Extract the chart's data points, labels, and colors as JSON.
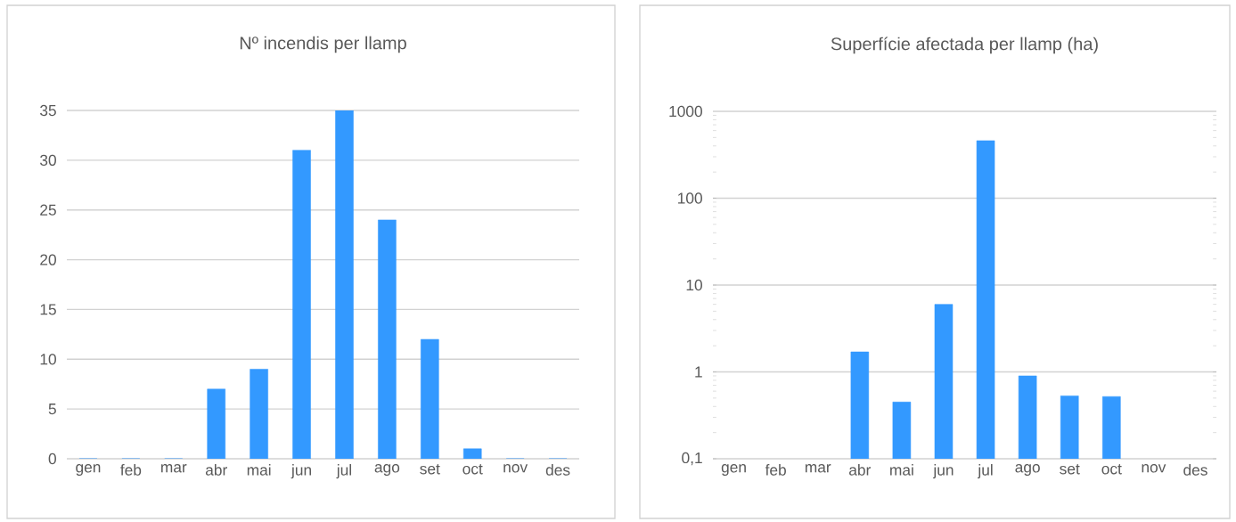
{
  "chart_data": [
    {
      "type": "bar",
      "title": "Nº incendis per llamp",
      "categories": [
        "gen",
        "feb",
        "mar",
        "abr",
        "mai",
        "jun",
        "jul",
        "ago",
        "set",
        "oct",
        "nov",
        "des"
      ],
      "values": [
        0,
        0,
        0,
        7,
        9,
        31,
        35,
        24,
        12,
        1,
        0,
        0
      ],
      "color": "#3399ff",
      "ylim": [
        0,
        35
      ],
      "yticks": [
        0,
        5,
        10,
        15,
        20,
        25,
        30,
        35
      ],
      "grid": "y"
    },
    {
      "type": "bar",
      "title": "Superfície afectada per llamp (ha)",
      "categories": [
        "gen",
        "feb",
        "mar",
        "abr",
        "mai",
        "jun",
        "jul",
        "ago",
        "set",
        "oct",
        "nov",
        "des"
      ],
      "values": [
        null,
        null,
        null,
        1.7,
        0.45,
        6,
        460,
        0.9,
        0.53,
        0.52,
        null,
        null
      ],
      "color": "#3399ff",
      "log": true,
      "ylim": [
        0.1,
        1000
      ],
      "yticks": [
        {
          "value": 0.1,
          "label": "0,1"
        },
        1,
        10,
        100,
        1000
      ],
      "grid": "y"
    }
  ]
}
